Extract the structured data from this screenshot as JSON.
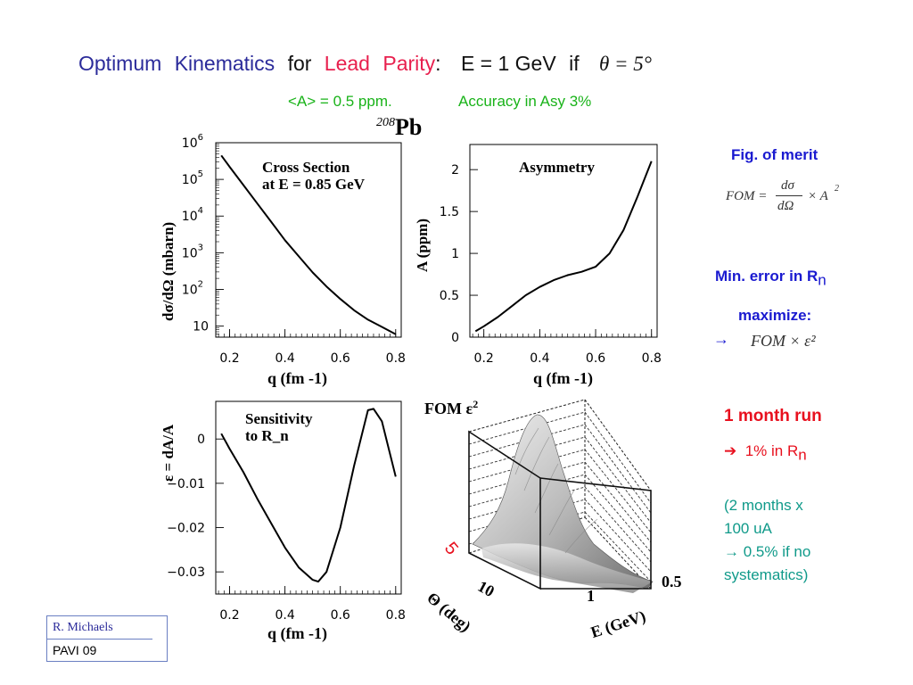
{
  "title": {
    "w1": "Optimum",
    "w2": "Kinematics",
    "w3": "for",
    "w4": "Lead",
    "w5": "Parity",
    "colon": ":",
    "energy": "E = 1 GeV",
    "if_word": "if",
    "theta_eq": "θ = 5°"
  },
  "subtitle": {
    "asym": "<A> = 0.5 ppm.",
    "accuracy": "Accuracy in Asy 3%"
  },
  "isotope": {
    "mass": "208",
    "symbol": "Pb"
  },
  "chart_data": [
    {
      "type": "line",
      "title": "Cross Section at E = 0.85 GeV",
      "title_line1": "Cross Section",
      "title_line2": "at E = 0.85 GeV",
      "xlabel": "q (fm -1)",
      "ylabel": "dσ/dΩ (mbarn)",
      "xlim": [
        0.15,
        0.82
      ],
      "ylim": [
        5,
        1000000
      ],
      "yscale": "log",
      "xticks": [
        "0.2",
        "0.4",
        "0.6",
        "0.8"
      ],
      "yticks": [
        "10",
        "10 2",
        "10 3",
        "10 4",
        "10 5",
        "10 6"
      ],
      "x": [
        0.17,
        0.2,
        0.25,
        0.3,
        0.35,
        0.4,
        0.45,
        0.5,
        0.55,
        0.6,
        0.65,
        0.7,
        0.75,
        0.8
      ],
      "y": [
        450000,
        220000,
        70000,
        22000,
        7000,
        2200,
        800,
        290,
        120,
        55,
        27,
        15,
        9.5,
        6
      ]
    },
    {
      "type": "line",
      "title": "Asymmetry",
      "xlabel": "q (fm -1)",
      "ylabel": "A (ppm)",
      "xlim": [
        0.15,
        0.82
      ],
      "ylim": [
        0,
        2.3
      ],
      "xticks": [
        "0.2",
        "0.4",
        "0.6",
        "0.8"
      ],
      "yticks": [
        "0",
        "0.5",
        "1",
        "1.5",
        "2"
      ],
      "x": [
        0.17,
        0.2,
        0.25,
        0.3,
        0.35,
        0.4,
        0.45,
        0.5,
        0.55,
        0.6,
        0.65,
        0.7,
        0.75,
        0.8
      ],
      "y": [
        0.07,
        0.13,
        0.24,
        0.37,
        0.5,
        0.6,
        0.68,
        0.74,
        0.78,
        0.84,
        1.0,
        1.28,
        1.68,
        2.1
      ]
    },
    {
      "type": "line",
      "title": "Sensitivity to R_n",
      "title_line1": "Sensitivity",
      "title_line2": "to R_n",
      "xlabel": "q (fm -1)",
      "ylabel": "ε = dA/A",
      "xlim": [
        0.15,
        0.82
      ],
      "ylim": [
        -0.035,
        0.0085
      ],
      "xticks": [
        "0.2",
        "0.4",
        "0.6",
        "0.8"
      ],
      "yticks": [
        "0",
        "−0.01",
        "−0.02",
        "−0.03"
      ],
      "x": [
        0.17,
        0.2,
        0.25,
        0.3,
        0.35,
        0.4,
        0.45,
        0.5,
        0.52,
        0.55,
        0.6,
        0.65,
        0.7,
        0.72,
        0.75,
        0.8
      ],
      "y": [
        0.0012,
        -0.0022,
        -0.0075,
        -0.0135,
        -0.019,
        -0.0245,
        -0.029,
        -0.0318,
        -0.0322,
        -0.03,
        -0.02,
        -0.006,
        0.0065,
        0.0068,
        0.004,
        -0.0085
      ]
    }
  ],
  "surface_plot": {
    "title": "FOM ε",
    "title_sup": "2",
    "theta_tick_5": "5",
    "theta_tick_10": "10",
    "theta_label": "Θ (deg)",
    "e_tick_1": "1",
    "e_tick_05": "0.5",
    "e_label": "E (GeV)"
  },
  "sidebar": {
    "fig_merit": "Fig. of merit",
    "fom_formula": "FOM = dσ/dΩ × A²",
    "min_error": "Min. error in R",
    "min_error_sub": "n",
    "maximize": "maximize:",
    "arrow": "→",
    "fom_eps": "FOM × ε²",
    "run": "1 month run",
    "pct": "1% in R",
    "pct_sub": "n",
    "note_l1": "(2 months x",
    "note_l2": "100 uA",
    "note_l3": "→ 0.5% if no",
    "note_l4": "systematics)"
  },
  "colors": {
    "title_blue": "#2b2b9a",
    "title_red": "#e8204e",
    "subtitle_green": "#19b319",
    "side_blue": "#1a1ad0",
    "side_red": "#e8101e",
    "side_teal": "#109a8a"
  },
  "footer": {
    "author": "R. Michaels",
    "event": "PAVI 09"
  }
}
